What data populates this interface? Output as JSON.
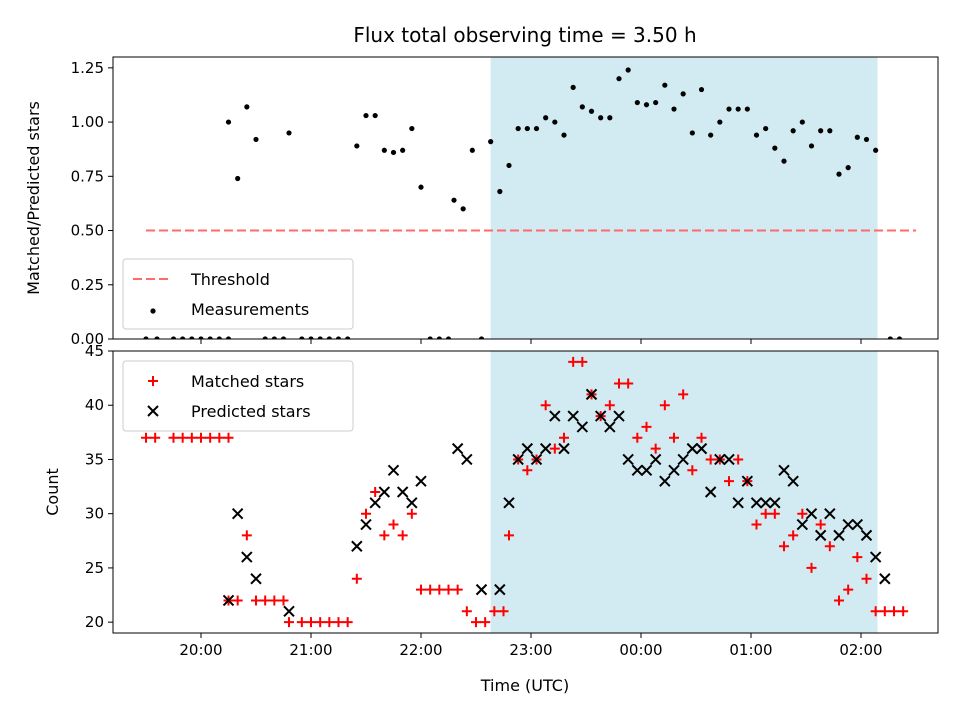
{
  "chart_data": {
    "title": "Flux total observing time = 3.50 h",
    "xlabel": "Time (UTC)",
    "x_time_unit": "hours UTC (clock), wraps past midnight",
    "xlim": [
      "19:12",
      "02:42"
    ],
    "x_tick_labels": [
      "20:00",
      "21:00",
      "22:00",
      "23:00",
      "00:00",
      "01:00",
      "02:00"
    ],
    "highlight_span": {
      "start": "22:38",
      "end": "02:09",
      "color": "#add8e6"
    },
    "panels": [
      {
        "type": "scatter",
        "ylabel": "Matched/Predicted stars",
        "ylim": [
          0,
          1.3
        ],
        "y_ticks": [
          "0.00",
          "0.25",
          "0.50",
          "0.75",
          "1.00",
          "1.25"
        ],
        "grid": false,
        "legend_position": "lower-left",
        "threshold": {
          "name": "Threshold",
          "value": 0.5,
          "color": "#ff6b6b",
          "x_start": "19:30",
          "x_end": "02:30"
        },
        "series": [
          {
            "name": "Measurements",
            "color": "#000000",
            "marker": "dot",
            "points": [
              [
                "19:30",
                0.0
              ],
              [
                "19:36",
                0.0
              ],
              [
                "19:45",
                0.0
              ],
              [
                "19:50",
                0.0
              ],
              [
                "19:55",
                0.0
              ],
              [
                "20:00",
                0.0
              ],
              [
                "20:05",
                0.0
              ],
              [
                "20:10",
                0.0
              ],
              [
                "20:15",
                0.0
              ],
              [
                "20:15",
                1.0
              ],
              [
                "20:20",
                0.74
              ],
              [
                "20:25",
                1.07
              ],
              [
                "20:30",
                0.92
              ],
              [
                "20:35",
                0.0
              ],
              [
                "20:40",
                0.0
              ],
              [
                "20:45",
                0.0
              ],
              [
                "20:48",
                0.95
              ],
              [
                "20:55",
                0.0
              ],
              [
                "21:00",
                0.0
              ],
              [
                "21:05",
                0.0
              ],
              [
                "21:10",
                0.0
              ],
              [
                "21:15",
                0.0
              ],
              [
                "21:20",
                0.0
              ],
              [
                "21:25",
                0.89
              ],
              [
                "21:30",
                1.03
              ],
              [
                "21:35",
                1.03
              ],
              [
                "21:40",
                0.87
              ],
              [
                "21:45",
                0.86
              ],
              [
                "21:50",
                0.87
              ],
              [
                "21:55",
                0.97
              ],
              [
                "22:00",
                0.7
              ],
              [
                "22:05",
                0.0
              ],
              [
                "22:10",
                0.0
              ],
              [
                "22:15",
                0.0
              ],
              [
                "22:18",
                0.64
              ],
              [
                "22:23",
                0.6
              ],
              [
                "22:28",
                0.87
              ],
              [
                "22:33",
                0.0
              ],
              [
                "22:38",
                0.91
              ],
              [
                "22:43",
                0.68
              ],
              [
                "22:48",
                0.8
              ],
              [
                "22:53",
                0.97
              ],
              [
                "22:58",
                0.97
              ],
              [
                "23:03",
                0.97
              ],
              [
                "23:08",
                1.02
              ],
              [
                "23:13",
                1.0
              ],
              [
                "23:18",
                0.94
              ],
              [
                "23:23",
                1.16
              ],
              [
                "23:28",
                1.07
              ],
              [
                "23:33",
                1.05
              ],
              [
                "23:38",
                1.02
              ],
              [
                "23:43",
                1.02
              ],
              [
                "23:48",
                1.2
              ],
              [
                "23:53",
                1.24
              ],
              [
                "23:58",
                1.09
              ],
              [
                "00:03",
                1.08
              ],
              [
                "00:08",
                1.09
              ],
              [
                "00:13",
                1.17
              ],
              [
                "00:18",
                1.06
              ],
              [
                "00:23",
                1.13
              ],
              [
                "00:28",
                0.95
              ],
              [
                "00:33",
                1.15
              ],
              [
                "00:38",
                0.94
              ],
              [
                "00:43",
                1.0
              ],
              [
                "00:48",
                1.06
              ],
              [
                "00:53",
                1.06
              ],
              [
                "00:58",
                1.06
              ],
              [
                "01:03",
                0.94
              ],
              [
                "01:08",
                0.97
              ],
              [
                "01:13",
                0.88
              ],
              [
                "01:18",
                0.82
              ],
              [
                "01:23",
                0.96
              ],
              [
                "01:28",
                1.0
              ],
              [
                "01:33",
                0.89
              ],
              [
                "01:38",
                0.96
              ],
              [
                "01:43",
                0.96
              ],
              [
                "01:48",
                0.76
              ],
              [
                "01:53",
                0.79
              ],
              [
                "01:58",
                0.93
              ],
              [
                "02:03",
                0.92
              ],
              [
                "02:08",
                0.87
              ],
              [
                "02:16",
                0.0
              ],
              [
                "02:21",
                0.0
              ]
            ]
          }
        ]
      },
      {
        "type": "scatter",
        "ylabel": "Count",
        "ylim": [
          19,
          45
        ],
        "y_ticks": [
          "20",
          "25",
          "30",
          "35",
          "40",
          "45"
        ],
        "grid": false,
        "legend_position": "upper-left",
        "series": [
          {
            "name": "Matched stars",
            "color": "#ff0000",
            "marker": "plus",
            "points": [
              [
                "19:30",
                37
              ],
              [
                "19:35",
                37
              ],
              [
                "19:45",
                37
              ],
              [
                "19:50",
                37
              ],
              [
                "19:55",
                37
              ],
              [
                "20:00",
                37
              ],
              [
                "20:05",
                37
              ],
              [
                "20:10",
                37
              ],
              [
                "20:15",
                37
              ],
              [
                "20:15",
                22
              ],
              [
                "20:20",
                22
              ],
              [
                "20:25",
                28
              ],
              [
                "20:30",
                22
              ],
              [
                "20:35",
                22
              ],
              [
                "20:40",
                22
              ],
              [
                "20:45",
                22
              ],
              [
                "20:48",
                20
              ],
              [
                "20:55",
                20
              ],
              [
                "21:00",
                20
              ],
              [
                "21:05",
                20
              ],
              [
                "21:10",
                20
              ],
              [
                "21:15",
                20
              ],
              [
                "21:20",
                20
              ],
              [
                "21:25",
                24
              ],
              [
                "21:30",
                30
              ],
              [
                "21:35",
                32
              ],
              [
                "21:40",
                28
              ],
              [
                "21:45",
                29
              ],
              [
                "21:50",
                28
              ],
              [
                "21:55",
                30
              ],
              [
                "22:00",
                23
              ],
              [
                "22:05",
                23
              ],
              [
                "22:10",
                23
              ],
              [
                "22:15",
                23
              ],
              [
                "22:20",
                23
              ],
              [
                "22:25",
                21
              ],
              [
                "22:30",
                20
              ],
              [
                "22:35",
                20
              ],
              [
                "22:40",
                21
              ],
              [
                "22:45",
                21
              ],
              [
                "22:48",
                28
              ],
              [
                "22:53",
                35
              ],
              [
                "22:58",
                34
              ],
              [
                "23:03",
                35
              ],
              [
                "23:08",
                40
              ],
              [
                "23:13",
                36
              ],
              [
                "23:18",
                37
              ],
              [
                "23:23",
                44
              ],
              [
                "23:28",
                44
              ],
              [
                "23:33",
                41
              ],
              [
                "23:38",
                39
              ],
              [
                "23:43",
                40
              ],
              [
                "23:48",
                42
              ],
              [
                "23:53",
                42
              ],
              [
                "23:58",
                37
              ],
              [
                "00:03",
                38
              ],
              [
                "00:08",
                36
              ],
              [
                "00:13",
                40
              ],
              [
                "00:18",
                37
              ],
              [
                "00:23",
                41
              ],
              [
                "00:28",
                34
              ],
              [
                "00:33",
                37
              ],
              [
                "00:38",
                35
              ],
              [
                "00:43",
                35
              ],
              [
                "00:48",
                33
              ],
              [
                "00:53",
                35
              ],
              [
                "00:58",
                33
              ],
              [
                "01:03",
                29
              ],
              [
                "01:08",
                30
              ],
              [
                "01:13",
                30
              ],
              [
                "01:18",
                27
              ],
              [
                "01:23",
                28
              ],
              [
                "01:28",
                30
              ],
              [
                "01:33",
                25
              ],
              [
                "01:38",
                29
              ],
              [
                "01:43",
                27
              ],
              [
                "01:48",
                22
              ],
              [
                "01:53",
                23
              ],
              [
                "01:58",
                26
              ],
              [
                "02:03",
                24
              ],
              [
                "02:08",
                21
              ],
              [
                "02:13",
                21
              ],
              [
                "02:18",
                21
              ],
              [
                "02:23",
                21
              ]
            ]
          },
          {
            "name": "Predicted stars",
            "color": "#000000",
            "marker": "x",
            "points": [
              [
                "20:15",
                22
              ],
              [
                "20:20",
                30
              ],
              [
                "20:25",
                26
              ],
              [
                "20:30",
                24
              ],
              [
                "20:48",
                21
              ],
              [
                "21:25",
                27
              ],
              [
                "21:30",
                29
              ],
              [
                "21:35",
                31
              ],
              [
                "21:40",
                32
              ],
              [
                "21:45",
                34
              ],
              [
                "21:50",
                32
              ],
              [
                "21:55",
                31
              ],
              [
                "22:00",
                33
              ],
              [
                "22:20",
                36
              ],
              [
                "22:25",
                35
              ],
              [
                "22:33",
                23
              ],
              [
                "22:43",
                23
              ],
              [
                "22:48",
                31
              ],
              [
                "22:53",
                35
              ],
              [
                "22:58",
                36
              ],
              [
                "23:03",
                35
              ],
              [
                "23:08",
                36
              ],
              [
                "23:13",
                39
              ],
              [
                "23:18",
                36
              ],
              [
                "23:23",
                39
              ],
              [
                "23:28",
                38
              ],
              [
                "23:33",
                41
              ],
              [
                "23:38",
                39
              ],
              [
                "23:43",
                38
              ],
              [
                "23:48",
                39
              ],
              [
                "23:53",
                35
              ],
              [
                "23:58",
                34
              ],
              [
                "00:03",
                34
              ],
              [
                "00:08",
                35
              ],
              [
                "00:13",
                33
              ],
              [
                "00:18",
                34
              ],
              [
                "00:23",
                35
              ],
              [
                "00:28",
                36
              ],
              [
                "00:33",
                36
              ],
              [
                "00:38",
                32
              ],
              [
                "00:43",
                35
              ],
              [
                "00:48",
                35
              ],
              [
                "00:53",
                31
              ],
              [
                "00:58",
                33
              ],
              [
                "01:03",
                31
              ],
              [
                "01:08",
                31
              ],
              [
                "01:13",
                31
              ],
              [
                "01:18",
                34
              ],
              [
                "01:23",
                33
              ],
              [
                "01:28",
                29
              ],
              [
                "01:33",
                30
              ],
              [
                "01:38",
                28
              ],
              [
                "01:43",
                30
              ],
              [
                "01:48",
                28
              ],
              [
                "01:53",
                29
              ],
              [
                "01:58",
                29
              ],
              [
                "02:03",
                28
              ],
              [
                "02:08",
                26
              ],
              [
                "02:13",
                24
              ]
            ]
          }
        ]
      }
    ]
  }
}
